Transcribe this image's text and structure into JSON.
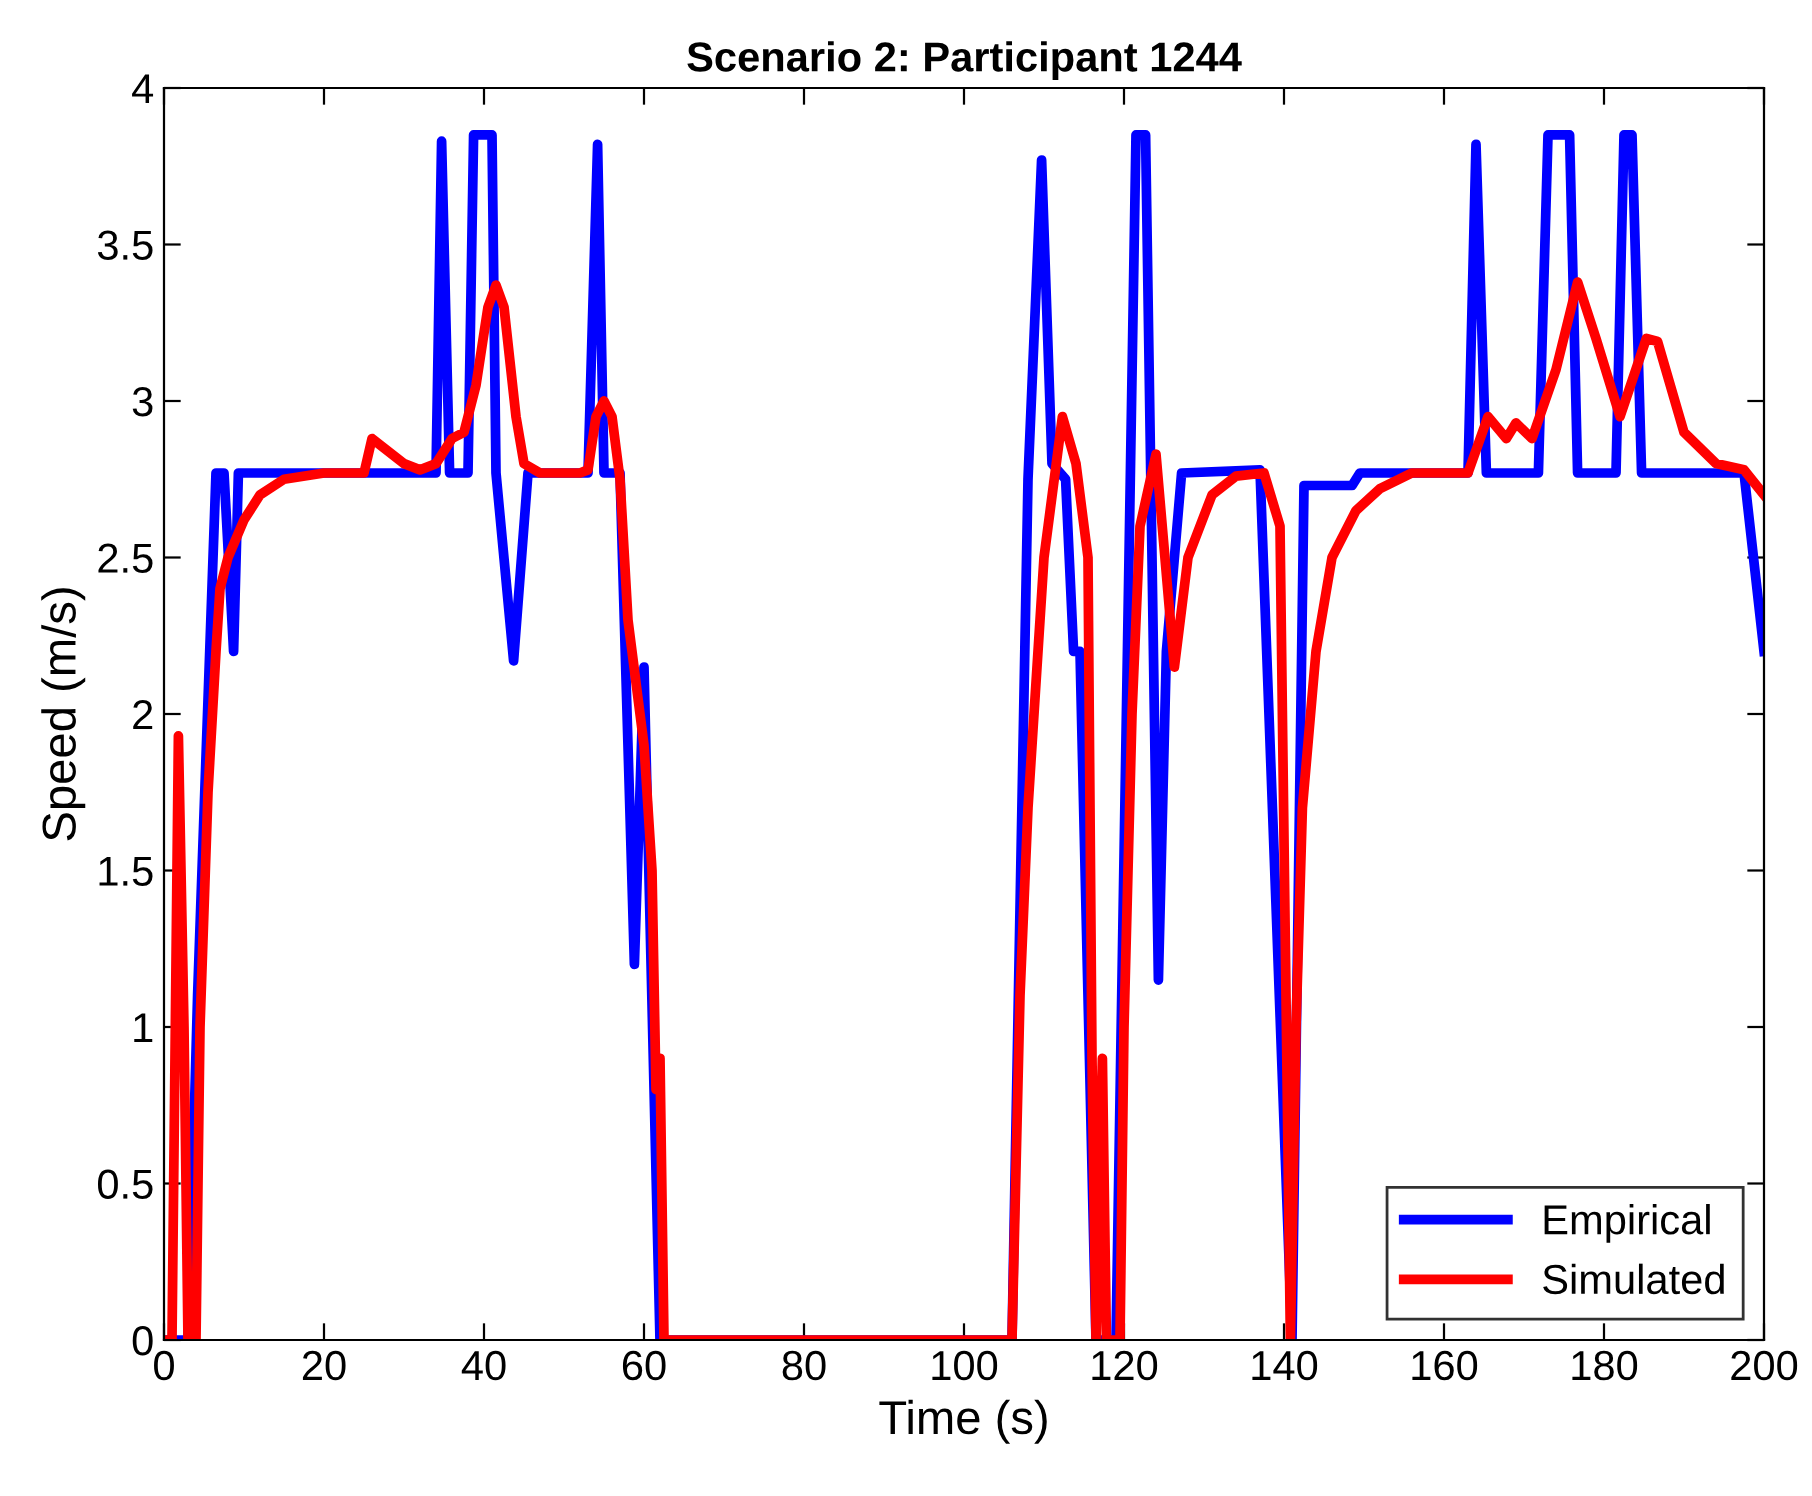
{
  "chart_data": {
    "type": "line",
    "title": "Scenario 2: Participant 1244",
    "xlabel": "Time (s)",
    "ylabel": "Speed (m/s)",
    "xlim": [
      0,
      200
    ],
    "ylim": [
      0,
      4
    ],
    "xticks": [
      0,
      20,
      40,
      60,
      80,
      100,
      120,
      140,
      160,
      180,
      200
    ],
    "yticks": [
      0,
      0.5,
      1,
      1.5,
      2,
      2.5,
      3,
      3.5,
      4
    ],
    "grid": false,
    "legend": "bottom right",
    "line_style": "solid",
    "marker": "none",
    "series": [
      {
        "name": "Empirical",
        "color": "#0000ff",
        "x": [
          0,
          2.5,
          3,
          4.2,
          6.5,
          7.5,
          8.7,
          9.3,
          34,
          34.7,
          35.7,
          38,
          38.7,
          41,
          41.5,
          43.7,
          45.5,
          53,
          54.2,
          55,
          57,
          58.8,
          60,
          62,
          106,
          108,
          109.7,
          111,
          112.7,
          113.7,
          114.5,
          116.5,
          119,
          121.5,
          122.7,
          124.3,
          125.3,
          127.2,
          137,
          141,
          142.5,
          148.5,
          149.5,
          163,
          164,
          165.3,
          171.8,
          173,
          175.7,
          176.7,
          181.5,
          182.5,
          183.5,
          184.7,
          197.5,
          200
        ],
        "values": [
          0,
          0,
          0,
          1.1,
          2.77,
          2.77,
          2.2,
          2.77,
          2.77,
          3.83,
          2.77,
          2.77,
          3.85,
          3.85,
          2.77,
          2.17,
          2.77,
          2.77,
          3.82,
          2.77,
          2.77,
          1.2,
          2.15,
          0,
          0,
          2.75,
          3.77,
          2.8,
          2.75,
          2.2,
          2.2,
          0,
          0,
          3.85,
          3.85,
          1.15,
          2.2,
          2.77,
          2.78,
          0,
          2.73,
          2.73,
          2.77,
          2.77,
          3.82,
          2.77,
          2.77,
          3.85,
          3.85,
          2.77,
          2.77,
          3.85,
          3.85,
          2.77,
          2.77,
          2.2
        ]
      },
      {
        "name": "Simulated",
        "color": "#ff0000",
        "x": [
          0,
          1,
          1.8,
          2.5,
          3,
          4,
          4.5,
          5.5,
          6.5,
          7,
          8,
          10,
          12,
          15,
          20,
          25,
          26,
          28,
          30,
          32,
          34,
          36,
          37.5,
          39,
          40.5,
          41.5,
          42.5,
          44,
          45,
          47,
          52,
          53,
          54,
          55,
          56,
          57,
          58,
          59.5,
          60,
          61,
          61.5,
          62,
          62.5,
          106,
          107,
          108,
          110,
          112.3,
          114,
          115.5,
          116,
          116.5,
          117.3,
          117.8,
          119.5,
          120,
          121,
          122,
          124,
          126.3,
          128,
          131,
          134,
          137.5,
          139.5,
          140.8,
          141.5,
          142.3,
          144,
          146,
          149,
          152,
          156,
          163,
          165.5,
          167.8,
          169,
          171,
          174,
          176.7,
          179,
          182,
          185.3,
          186.7,
          190,
          194,
          197.5,
          200
        ],
        "values": [
          0,
          0,
          1.93,
          1.0,
          0,
          0,
          1.0,
          1.75,
          2.2,
          2.4,
          2.5,
          2.62,
          2.7,
          2.75,
          2.77,
          2.77,
          2.88,
          2.84,
          2.8,
          2.78,
          2.8,
          2.88,
          2.9,
          3.05,
          3.3,
          3.37,
          3.3,
          2.95,
          2.8,
          2.77,
          2.77,
          2.78,
          2.95,
          3.0,
          2.95,
          2.75,
          2.3,
          2.0,
          1.9,
          1.5,
          0.8,
          0.9,
          0,
          0,
          1.1,
          1.7,
          2.5,
          2.95,
          2.8,
          2.5,
          0.9,
          0,
          0.9,
          0,
          0,
          1.0,
          2.0,
          2.6,
          2.83,
          2.15,
          2.5,
          2.7,
          2.76,
          2.77,
          2.6,
          0,
          1.0,
          1.7,
          2.2,
          2.5,
          2.65,
          2.72,
          2.77,
          2.77,
          2.95,
          2.88,
          2.93,
          2.88,
          3.1,
          3.38,
          3.2,
          2.95,
          3.2,
          3.19,
          2.9,
          2.8,
          2.78,
          2.7
        ]
      }
    ]
  }
}
